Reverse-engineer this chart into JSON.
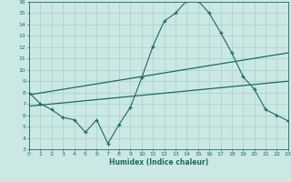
{
  "xlabel": "Humidex (Indice chaleur)",
  "background_color": "#cce8e4",
  "grid_color": "#aad4cc",
  "line_color": "#1a6b60",
  "x_min": 0,
  "x_max": 23,
  "y_min": 3,
  "y_max": 16,
  "curve1_x": [
    0,
    1,
    2,
    3,
    4,
    5,
    6,
    7,
    8,
    9,
    10,
    11,
    12,
    13,
    14,
    15,
    16,
    17,
    18,
    19,
    20,
    21,
    22,
    23
  ],
  "curve1_y": [
    8.0,
    7.0,
    6.5,
    5.8,
    5.6,
    4.5,
    5.6,
    3.5,
    5.2,
    6.7,
    9.3,
    12.1,
    14.3,
    15.0,
    16.1,
    16.1,
    15.0,
    13.3,
    11.5,
    9.4,
    8.3,
    6.5,
    6.0,
    5.5
  ],
  "curve2_x": [
    0,
    23
  ],
  "curve2_y": [
    7.8,
    11.5
  ],
  "curve3_x": [
    0,
    23
  ],
  "curve3_y": [
    6.8,
    9.0
  ]
}
